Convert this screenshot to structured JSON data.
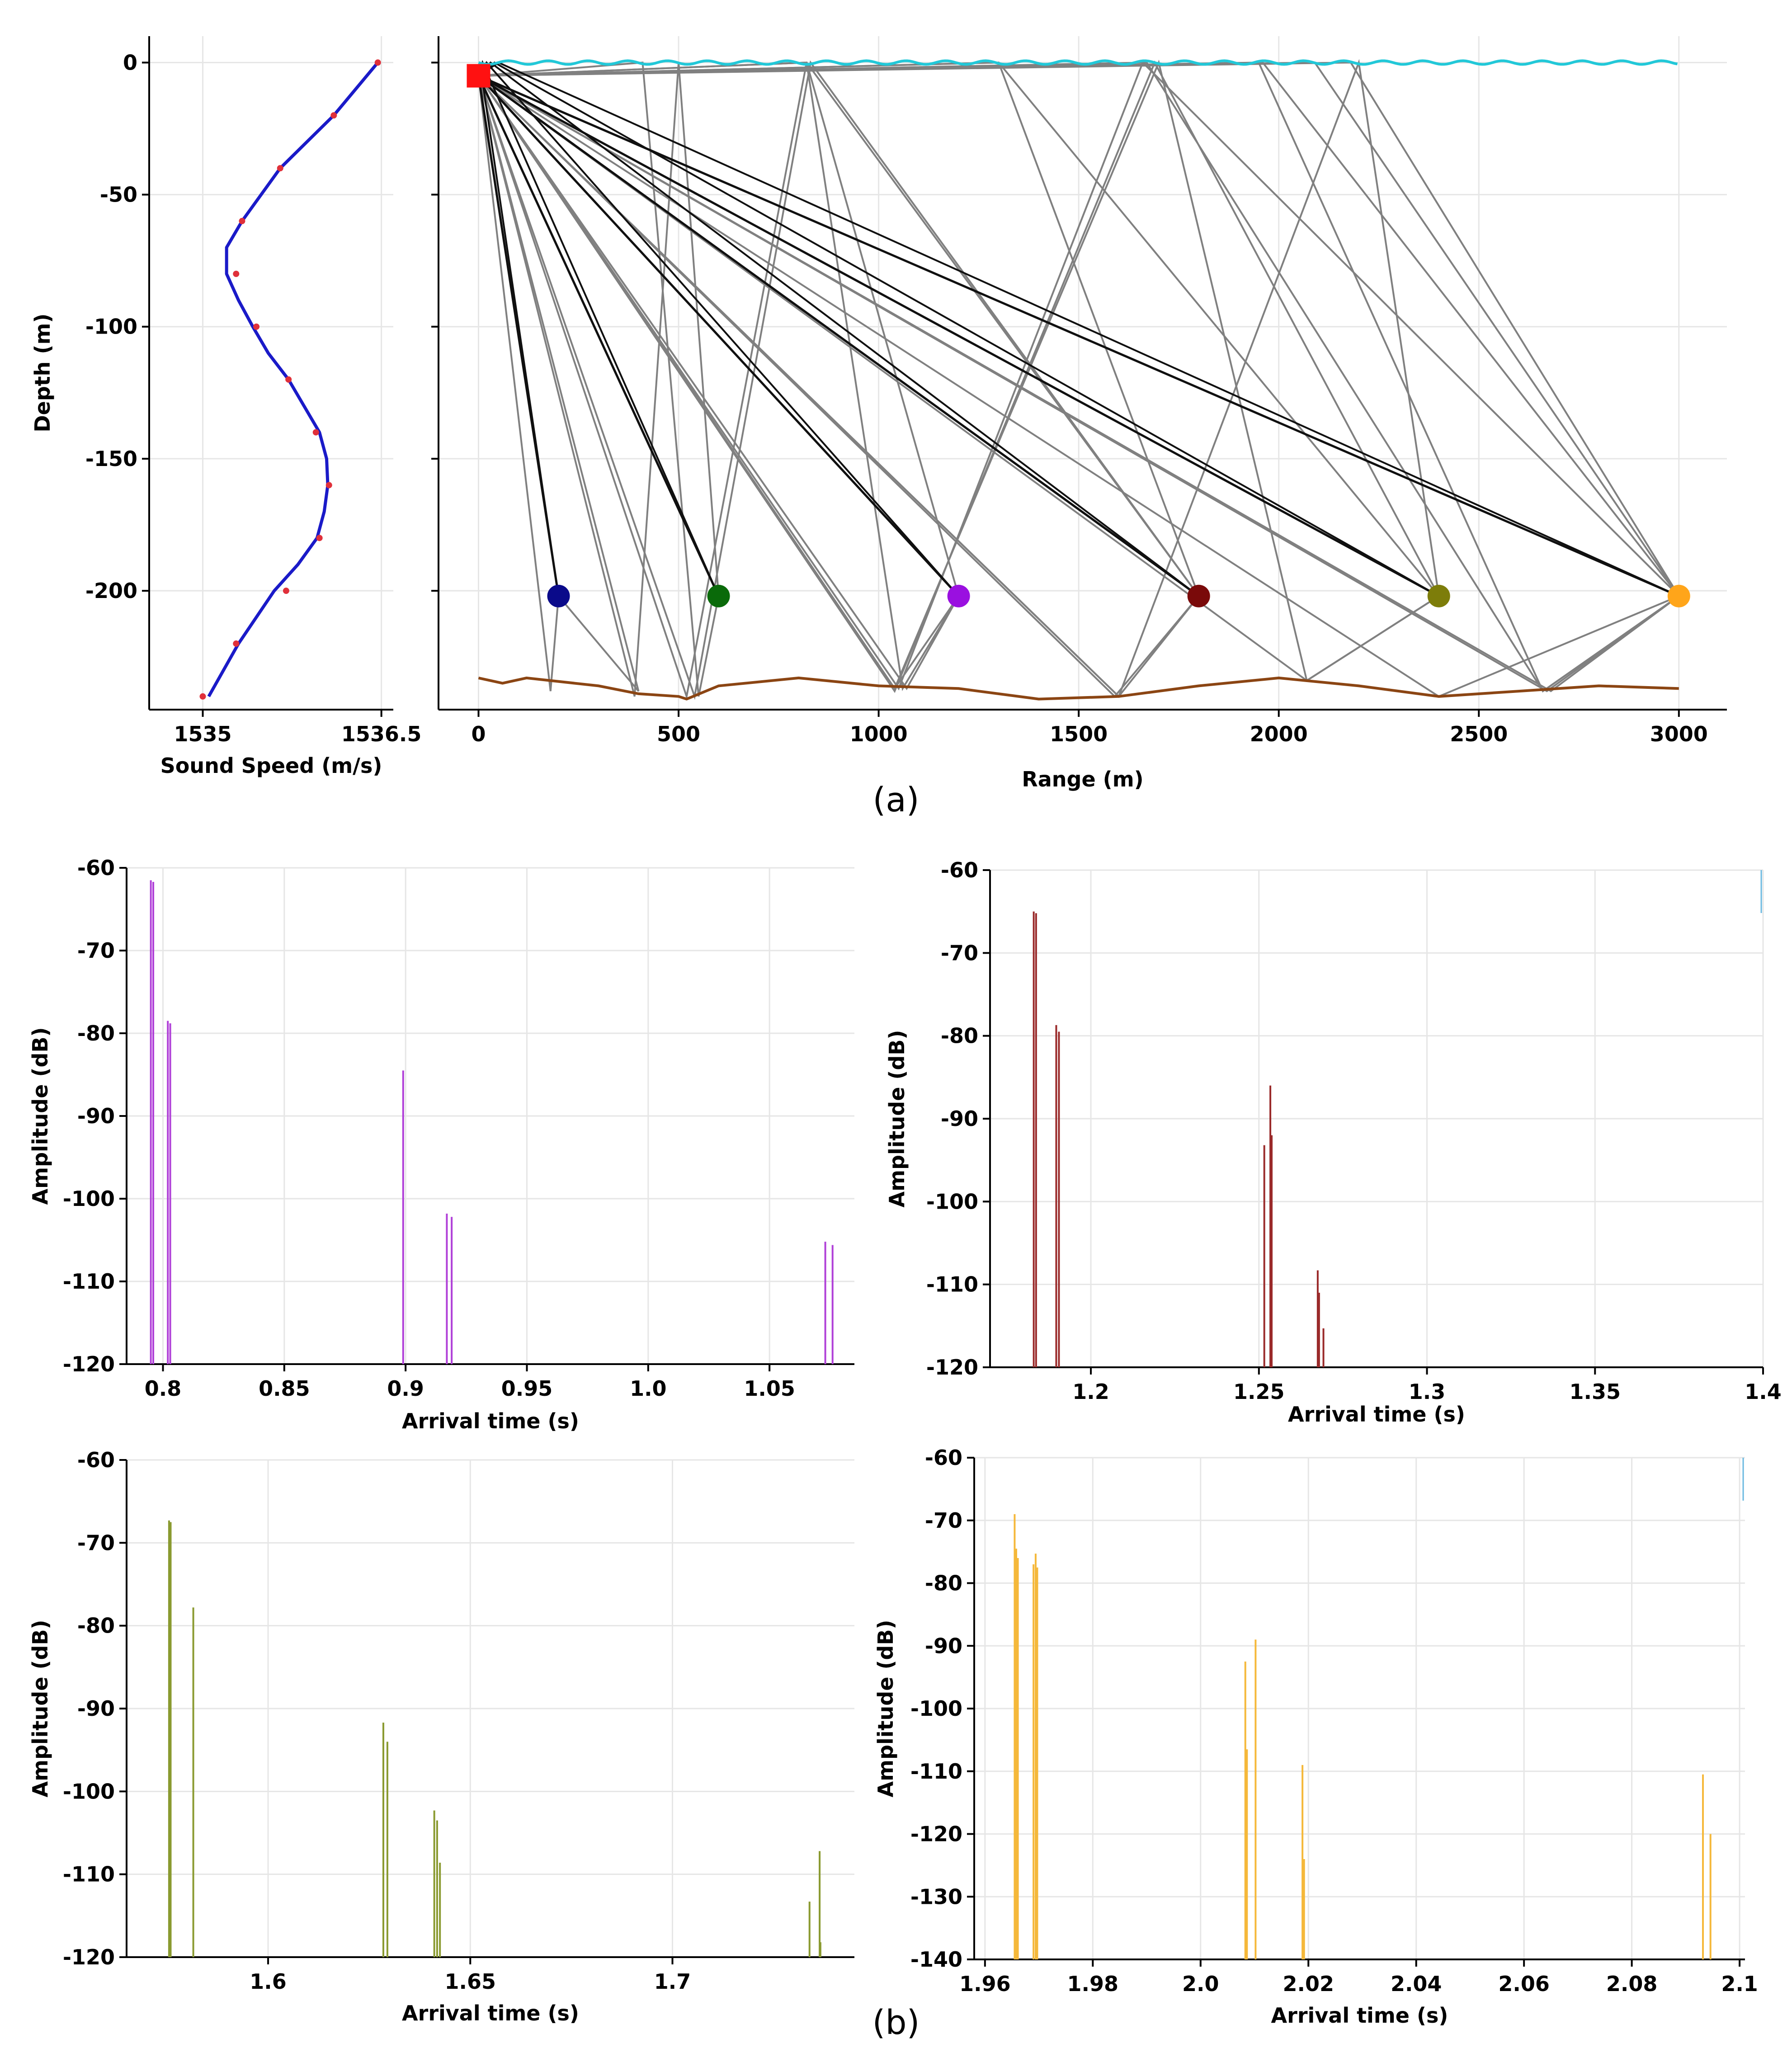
{
  "figure": {
    "caption_a": "(a)",
    "caption_b": "(b)"
  },
  "colors": {
    "ssp_line": "#1a1ac8",
    "ssp_marker": "#e0303a",
    "surface": "#22c8d8",
    "bottom": "#8b4513",
    "source": "#ff1111",
    "ray_gray": "#808080",
    "ray_black": "#101010",
    "grid": "#e6e6e6",
    "r1": "#0a0a8a",
    "r2": "#0a6a0a",
    "r3": "#9a10e0",
    "r4": "#7a0a0a",
    "r5": "#7d7d0a",
    "r6": "#ffa51a",
    "p1": "#b040d8",
    "p2": "#9a2a2a",
    "p3": "#8a9a30",
    "p4": "#f5b83a",
    "corner_mark": "#6ab8e0"
  },
  "chart_data": [
    {
      "id": "ssp",
      "type": "line",
      "title": "",
      "xlabel": "Sound Speed (m/s)",
      "ylabel": "Depth (m)",
      "xlim": [
        1534.55,
        1536.6
      ],
      "ylim": [
        -245,
        10
      ],
      "xticks": [
        1535,
        1536.5
      ],
      "xtick_labels": [
        "1535",
        "1536.5"
      ],
      "yticks": [
        0,
        -50,
        -100,
        -150,
        -200
      ],
      "ytick_labels": [
        "0",
        "-50",
        "-100",
        "-150",
        "-200"
      ],
      "profile": [
        [
          1536.47,
          0
        ],
        [
          1536.1,
          -20
        ],
        [
          1535.65,
          -40
        ],
        [
          1535.33,
          -60
        ],
        [
          1535.2,
          -70
        ],
        [
          1535.2,
          -80
        ],
        [
          1535.3,
          -90
        ],
        [
          1535.42,
          -100
        ],
        [
          1535.55,
          -110
        ],
        [
          1535.72,
          -120
        ],
        [
          1535.85,
          -130
        ],
        [
          1535.98,
          -140
        ],
        [
          1536.04,
          -150
        ],
        [
          1536.05,
          -160
        ],
        [
          1536.02,
          -170
        ],
        [
          1535.96,
          -180
        ],
        [
          1535.8,
          -190
        ],
        [
          1535.6,
          -200
        ],
        [
          1535.3,
          -220
        ],
        [
          1535.05,
          -240
        ]
      ],
      "markers": [
        [
          1536.47,
          0
        ],
        [
          1536.1,
          -20
        ],
        [
          1535.65,
          -40
        ],
        [
          1535.33,
          -60
        ],
        [
          1535.28,
          -80
        ],
        [
          1535.45,
          -100
        ],
        [
          1535.72,
          -120
        ],
        [
          1535.95,
          -140
        ],
        [
          1536.06,
          -160
        ],
        [
          1535.98,
          -180
        ],
        [
          1535.7,
          -200
        ],
        [
          1535.28,
          -220
        ],
        [
          1535.0,
          -240
        ]
      ]
    },
    {
      "id": "rays",
      "type": "scatter",
      "title": "",
      "xlabel": "Range (m)",
      "ylabel": "",
      "xlim": [
        -100,
        3120
      ],
      "ylim": [
        -245,
        10
      ],
      "xticks": [
        0,
        500,
        1000,
        1500,
        2000,
        2500,
        3000
      ],
      "xtick_labels": [
        "0",
        "500",
        "1000",
        "1500",
        "2000",
        "2500",
        "3000"
      ],
      "source": {
        "range": 0,
        "depth": -5
      },
      "receivers": [
        {
          "range": 200,
          "depth": -202,
          "color_key": "r1"
        },
        {
          "range": 600,
          "depth": -202,
          "color_key": "r2"
        },
        {
          "range": 1200,
          "depth": -202,
          "color_key": "r3"
        },
        {
          "range": 1800,
          "depth": -202,
          "color_key": "r4"
        },
        {
          "range": 2400,
          "depth": -202,
          "color_key": "r5"
        },
        {
          "range": 3000,
          "depth": -202,
          "color_key": "r6"
        }
      ],
      "bathymetry": [
        [
          0,
          -233
        ],
        [
          60,
          -235
        ],
        [
          120,
          -233
        ],
        [
          300,
          -236
        ],
        [
          400,
          -239
        ],
        [
          500,
          -240
        ],
        [
          520,
          -241
        ],
        [
          600,
          -236
        ],
        [
          800,
          -233
        ],
        [
          1000,
          -236
        ],
        [
          1200,
          -237
        ],
        [
          1400,
          -241
        ],
        [
          1600,
          -240
        ],
        [
          1800,
          -236
        ],
        [
          2000,
          -233
        ],
        [
          2200,
          -236
        ],
        [
          2400,
          -240
        ],
        [
          2600,
          -238
        ],
        [
          2800,
          -236
        ],
        [
          3000,
          -237
        ]
      ],
      "surface_range": [
        0,
        3000
      ],
      "direct_paths": [
        [
          [
            0,
            -5
          ],
          [
            200,
            -202
          ]
        ],
        [
          [
            0,
            -5
          ],
          [
            600,
            -202
          ]
        ],
        [
          [
            0,
            -5
          ],
          [
            1200,
            -202
          ]
        ],
        [
          [
            0,
            -5
          ],
          [
            1800,
            -202
          ]
        ],
        [
          [
            0,
            -5
          ],
          [
            2400,
            -202
          ]
        ],
        [
          [
            0,
            -5
          ],
          [
            3000,
            -202
          ]
        ]
      ],
      "surface_reflected_paths": [
        [
          [
            0,
            -5
          ],
          [
            3,
            0
          ],
          [
            200,
            -202
          ]
        ],
        [
          [
            0,
            -5
          ],
          [
            10,
            0
          ],
          [
            600,
            -202
          ]
        ],
        [
          [
            0,
            -5
          ],
          [
            20,
            0
          ],
          [
            1200,
            -202
          ]
        ],
        [
          [
            0,
            -5
          ],
          [
            30,
            0
          ],
          [
            1800,
            -202
          ]
        ],
        [
          [
            0,
            -5
          ],
          [
            40,
            0
          ],
          [
            2400,
            -202
          ]
        ],
        [
          [
            0,
            -5
          ],
          [
            50,
            0
          ],
          [
            3000,
            -202
          ]
        ]
      ],
      "multipaths": [
        [
          [
            0,
            -5
          ],
          [
            180,
            -238
          ],
          [
            200,
            -202
          ]
        ],
        [
          [
            0,
            -5
          ],
          [
            400,
            -238
          ],
          [
            200,
            -202
          ]
        ],
        [
          [
            0,
            -5
          ],
          [
            410,
            0
          ],
          [
            550,
            -240
          ],
          [
            600,
            -202
          ]
        ],
        [
          [
            0,
            -5
          ],
          [
            390,
            -240
          ],
          [
            500,
            0
          ],
          [
            600,
            -202
          ]
        ],
        [
          [
            0,
            -5
          ],
          [
            1040,
            -237
          ],
          [
            1200,
            -202
          ]
        ],
        [
          [
            0,
            -5
          ],
          [
            1070,
            -237
          ],
          [
            1200,
            -202
          ]
        ],
        [
          [
            0,
            -5
          ],
          [
            820,
            0
          ],
          [
            1060,
            -237
          ],
          [
            1200,
            -202
          ]
        ],
        [
          [
            0,
            -5
          ],
          [
            520,
            -240
          ],
          [
            820,
            0
          ],
          [
            1200,
            -202
          ]
        ],
        [
          [
            0,
            -5
          ],
          [
            1590,
            -240
          ],
          [
            1800,
            -202
          ]
        ],
        [
          [
            0,
            -5
          ],
          [
            1600,
            -240
          ],
          [
            1800,
            -202
          ]
        ],
        [
          [
            0,
            -5
          ],
          [
            820,
            0
          ],
          [
            1800,
            -202
          ]
        ],
        [
          [
            0,
            -5
          ],
          [
            1300,
            0
          ],
          [
            1800,
            -202
          ]
        ],
        [
          [
            0,
            -5
          ],
          [
            540,
            -240
          ],
          [
            830,
            0
          ],
          [
            1800,
            -202
          ]
        ],
        [
          [
            0,
            -5
          ],
          [
            2070,
            -234
          ],
          [
            2400,
            -202
          ]
        ],
        [
          [
            0,
            -5
          ],
          [
            2400,
            -240
          ],
          [
            3000,
            -202
          ]
        ],
        [
          [
            0,
            -5
          ],
          [
            2670,
            -238
          ],
          [
            3000,
            -202
          ]
        ],
        [
          [
            0,
            -5
          ],
          [
            2680,
            -238
          ],
          [
            3000,
            -202
          ]
        ],
        [
          [
            0,
            -5
          ],
          [
            1040,
            -238
          ],
          [
            1690,
            0
          ],
          [
            2400,
            -202
          ]
        ],
        [
          [
            0,
            -5
          ],
          [
            1300,
            0
          ],
          [
            2400,
            -202
          ]
        ],
        [
          [
            0,
            -5
          ],
          [
            1600,
            -240
          ],
          [
            2200,
            0
          ],
          [
            2400,
            -202
          ]
        ],
        [
          [
            0,
            -5
          ],
          [
            1050,
            -237
          ],
          [
            1660,
            0
          ],
          [
            3000,
            -202
          ]
        ],
        [
          [
            0,
            -5
          ],
          [
            1960,
            0
          ],
          [
            3000,
            -202
          ]
        ],
        [
          [
            0,
            -5
          ],
          [
            2180,
            0
          ],
          [
            3000,
            -202
          ]
        ],
        [
          [
            0,
            -5
          ],
          [
            2090,
            0
          ],
          [
            3000,
            -202
          ]
        ],
        [
          [
            0,
            -5
          ],
          [
            1670,
            0
          ],
          [
            2660,
            -238
          ],
          [
            3000,
            -202
          ]
        ],
        [
          [
            0,
            -5
          ],
          [
            1950,
            0
          ],
          [
            2660,
            -238
          ],
          [
            3000,
            -202
          ]
        ],
        [
          [
            0,
            -5
          ],
          [
            1040,
            -237
          ],
          [
            1700,
            0
          ],
          [
            2070,
            -234
          ],
          [
            2400,
            -202
          ]
        ]
      ]
    },
    {
      "id": "arr1",
      "type": "bar",
      "title": "",
      "xlabel": "Arrival time (s)",
      "ylabel": "Amplitude (dB)",
      "xlim": [
        0.785,
        1.085
      ],
      "ylim": [
        -120,
        -60
      ],
      "xticks": [
        0.8,
        0.85,
        0.9,
        0.95,
        1.0,
        1.05
      ],
      "xtick_labels": [
        "0.8",
        "0.85",
        "0.9",
        "0.95",
        "1.0",
        "1.05"
      ],
      "yticks": [
        -60,
        -70,
        -80,
        -90,
        -100,
        -110,
        -120
      ],
      "ytick_labels": [
        "-60",
        "-70",
        "-80",
        "-90",
        "-100",
        "-110",
        "-120"
      ],
      "color_key": "p1",
      "arrivals": [
        [
          0.795,
          -61.5
        ],
        [
          0.796,
          -61.7
        ],
        [
          0.802,
          -78.5
        ],
        [
          0.803,
          -78.8
        ],
        [
          0.899,
          -84.5
        ],
        [
          0.917,
          -101.8
        ],
        [
          0.919,
          -102.2
        ],
        [
          1.073,
          -105.2
        ],
        [
          1.076,
          -105.6
        ]
      ]
    },
    {
      "id": "arr2",
      "type": "bar",
      "title": "",
      "xlabel": "Arrival time (s)",
      "ylabel": "Amplitude (dB)",
      "xlim": [
        1.17,
        1.4
      ],
      "ylim": [
        -120,
        -60
      ],
      "xticks": [
        1.2,
        1.25,
        1.3,
        1.35,
        1.4
      ],
      "xtick_labels": [
        "1.2",
        "1.25",
        "1.3",
        "1.35",
        "1.4"
      ],
      "yticks": [
        -60,
        -70,
        -80,
        -90,
        -100,
        -110,
        -120
      ],
      "ytick_labels": [
        "-60",
        "-70",
        "-80",
        "-90",
        "-100",
        "-110",
        "-120"
      ],
      "color_key": "p2",
      "arrivals": [
        [
          1.183,
          -65
        ],
        [
          1.1837,
          -65.2
        ],
        [
          1.1897,
          -78.7
        ],
        [
          1.1905,
          -79.5
        ],
        [
          1.2516,
          -93.2
        ],
        [
          1.2534,
          -86
        ],
        [
          1.2538,
          -92
        ],
        [
          1.2675,
          -108.3
        ],
        [
          1.2679,
          -111
        ],
        [
          1.2692,
          -115.3
        ]
      ]
    },
    {
      "id": "arr3",
      "type": "bar",
      "title": "",
      "xlabel": "Arrival time (s)",
      "ylabel": "Amplitude (dB)",
      "xlim": [
        1.565,
        1.745
      ],
      "ylim": [
        -120,
        -60
      ],
      "xticks": [
        1.6,
        1.65,
        1.7
      ],
      "xtick_labels": [
        "1.6",
        "1.65",
        "1.7"
      ],
      "yticks": [
        -60,
        -70,
        -80,
        -90,
        -100,
        -110,
        -120
      ],
      "ytick_labels": [
        "-60",
        "-70",
        "-80",
        "-90",
        "-100",
        "-110",
        "-120"
      ],
      "color_key": "p3",
      "arrivals": [
        [
          1.5755,
          -67.3
        ],
        [
          1.5759,
          -67.5
        ],
        [
          1.5815,
          -77.8
        ],
        [
          1.6285,
          -91.7
        ],
        [
          1.6295,
          -94
        ],
        [
          1.6411,
          -102.3
        ],
        [
          1.6418,
          -103.5
        ],
        [
          1.6425,
          -108.6
        ],
        [
          1.7339,
          -113.3
        ],
        [
          1.7364,
          -107.2
        ],
        [
          1.7366,
          -118.2
        ]
      ]
    },
    {
      "id": "arr4",
      "type": "bar",
      "title": "",
      "xlabel": "Arrival time (s)",
      "ylabel": "Amplitude (dB)",
      "xlim": [
        1.958,
        2.101
      ],
      "ylim": [
        -140,
        -60
      ],
      "xticks": [
        1.96,
        1.98,
        2.0,
        2.02,
        2.04,
        2.06,
        2.08,
        2.1
      ],
      "xtick_labels": [
        "1.96",
        "1.98",
        "2.0",
        "2.02",
        "2.04",
        "2.06",
        "2.08",
        "2.1"
      ],
      "yticks": [
        -60,
        -70,
        -80,
        -90,
        -100,
        -110,
        -120,
        -130,
        -140
      ],
      "ytick_labels": [
        "-60",
        "-70",
        "-80",
        "-90",
        "-100",
        "-110",
        "-120",
        "-130",
        "-140"
      ],
      "color_key": "p4",
      "arrivals": [
        [
          1.9655,
          -69
        ],
        [
          1.9658,
          -74.5
        ],
        [
          1.9661,
          -76
        ],
        [
          1.969,
          -77
        ],
        [
          1.9694,
          -75.3
        ],
        [
          1.9697,
          -77.5
        ],
        [
          2.0083,
          -92.5
        ],
        [
          2.0086,
          -106.5
        ],
        [
          2.0102,
          -89
        ],
        [
          2.0189,
          -109
        ],
        [
          2.0192,
          -124
        ],
        [
          2.0932,
          -110.5
        ],
        [
          2.0946,
          -120
        ]
      ]
    }
  ]
}
